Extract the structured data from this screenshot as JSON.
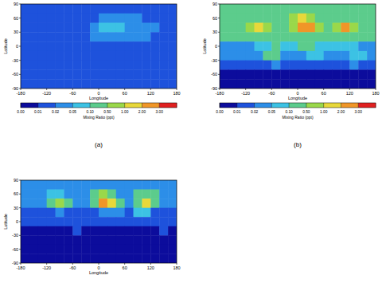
{
  "chart_data": [
    {
      "type": "heatmap",
      "subtitle": "(a)",
      "xlabel": "Longitude",
      "ylabel": "Latitude",
      "xlim": [
        -180,
        180
      ],
      "ylim": [
        -90,
        90
      ],
      "xticks": [
        -180,
        -120,
        -60,
        0,
        60,
        120,
        180
      ],
      "yticks": [
        -90,
        -60,
        -30,
        0,
        30,
        60,
        90
      ],
      "x": [
        -170,
        -150,
        -130,
        -110,
        -90,
        -70,
        -50,
        -30,
        -10,
        10,
        30,
        50,
        70,
        90,
        110,
        130,
        150,
        170
      ],
      "y": [
        80,
        60,
        40,
        20,
        0,
        -20,
        -40,
        -60,
        -80
      ],
      "cells": [
        [
          0.015,
          0.015,
          0.015,
          0.015,
          0.015,
          0.015,
          0.015,
          0.015,
          0.015,
          0.015,
          0.015,
          0.015,
          0.015,
          0.015,
          0.015,
          0.015,
          0.015,
          0.015
        ],
        [
          0.015,
          0.015,
          0.015,
          0.015,
          0.015,
          0.015,
          0.015,
          0.015,
          0.015,
          0.025,
          0.025,
          0.025,
          0.025,
          0.025,
          0.015,
          0.015,
          0.015,
          0.015
        ],
        [
          0.015,
          0.015,
          0.015,
          0.015,
          0.015,
          0.015,
          0.015,
          0.015,
          0.03,
          0.06,
          0.06,
          0.06,
          0.03,
          0.03,
          0.03,
          0.03,
          0.015,
          0.015
        ],
        [
          0.015,
          0.015,
          0.015,
          0.015,
          0.015,
          0.015,
          0.015,
          0.015,
          0.03,
          0.04,
          0.04,
          0.04,
          0.03,
          0.03,
          0.03,
          0.015,
          0.015,
          0.015
        ],
        [
          0.015,
          0.015,
          0.015,
          0.015,
          0.015,
          0.015,
          0.015,
          0.015,
          0.015,
          0.015,
          0.015,
          0.015,
          0.015,
          0.015,
          0.015,
          0.015,
          0.015,
          0.015
        ],
        [
          0.015,
          0.015,
          0.015,
          0.015,
          0.015,
          0.015,
          0.015,
          0.015,
          0.015,
          0.015,
          0.015,
          0.015,
          0.015,
          0.015,
          0.015,
          0.015,
          0.015,
          0.015
        ],
        [
          0.015,
          0.015,
          0.015,
          0.015,
          0.015,
          0.015,
          0.015,
          0.015,
          0.015,
          0.015,
          0.015,
          0.015,
          0.015,
          0.015,
          0.015,
          0.015,
          0.015,
          0.015
        ],
        [
          0.015,
          0.015,
          0.015,
          0.015,
          0.015,
          0.015,
          0.015,
          0.015,
          0.015,
          0.015,
          0.015,
          0.015,
          0.015,
          0.015,
          0.015,
          0.015,
          0.015,
          0.015
        ],
        [
          0.015,
          0.015,
          0.015,
          0.015,
          0.015,
          0.015,
          0.015,
          0.015,
          0.015,
          0.015,
          0.015,
          0.015,
          0.015,
          0.015,
          0.015,
          0.015,
          0.015,
          0.015
        ]
      ]
    },
    {
      "type": "heatmap",
      "subtitle": "(b)",
      "xlabel": "Longitude",
      "ylabel": "Latitude",
      "xlim": [
        -180,
        180
      ],
      "ylim": [
        -90,
        90
      ],
      "xticks": [
        -180,
        -120,
        -60,
        0,
        60,
        120,
        180
      ],
      "yticks": [
        -90,
        -60,
        -30,
        0,
        30,
        60,
        90
      ],
      "x": [
        -170,
        -150,
        -130,
        -110,
        -90,
        -70,
        -50,
        -30,
        -10,
        10,
        30,
        50,
        70,
        90,
        110,
        130,
        150,
        170
      ],
      "y": [
        80,
        60,
        40,
        20,
        0,
        -20,
        -40,
        -60,
        -80
      ],
      "cells": [
        [
          0.2,
          0.2,
          0.2,
          0.2,
          0.2,
          0.2,
          0.2,
          0.2,
          0.2,
          0.2,
          0.2,
          0.2,
          0.2,
          0.2,
          0.2,
          0.2,
          0.2,
          0.2
        ],
        [
          0.2,
          0.2,
          0.2,
          0.4,
          0.4,
          0.2,
          0.2,
          0.2,
          0.6,
          1.5,
          0.6,
          0.2,
          0.4,
          0.4,
          0.4,
          0.4,
          0.2,
          0.2
        ],
        [
          0.2,
          0.2,
          0.3,
          0.8,
          1.5,
          0.8,
          0.2,
          0.2,
          0.8,
          2.5,
          2.5,
          0.8,
          0.3,
          0.9,
          2.5,
          0.9,
          0.2,
          0.2
        ],
        [
          0.12,
          0.12,
          0.15,
          0.15,
          0.2,
          0.15,
          0.15,
          0.15,
          0.2,
          0.3,
          0.3,
          0.3,
          0.3,
          0.3,
          0.2,
          0.15,
          0.12,
          0.12
        ],
        [
          0.04,
          0.04,
          0.04,
          0.04,
          0.06,
          0.06,
          0.1,
          0.06,
          0.06,
          0.12,
          0.12,
          0.06,
          0.06,
          0.06,
          0.06,
          0.06,
          0.04,
          0.04
        ],
        [
          0.03,
          0.03,
          0.03,
          0.03,
          0.03,
          0.12,
          0.12,
          0.03,
          0.03,
          0.03,
          0.08,
          0.08,
          0.03,
          0.03,
          0.03,
          0.08,
          0.08,
          0.03
        ],
        [
          0.015,
          0.015,
          0.015,
          0.015,
          0.015,
          0.015,
          0.03,
          0.015,
          0.015,
          0.015,
          0.015,
          0.015,
          0.015,
          0.015,
          0.015,
          0.02,
          0.015,
          0.015
        ],
        [
          0.008,
          0.008,
          0.008,
          0.008,
          0.008,
          0.008,
          0.008,
          0.008,
          0.008,
          0.008,
          0.008,
          0.008,
          0.008,
          0.008,
          0.008,
          0.008,
          0.008,
          0.008
        ],
        [
          0.005,
          0.005,
          0.005,
          0.005,
          0.005,
          0.005,
          0.005,
          0.005,
          0.005,
          0.005,
          0.005,
          0.005,
          0.005,
          0.005,
          0.005,
          0.005,
          0.005,
          0.005
        ]
      ]
    },
    {
      "type": "heatmap",
      "xlabel": "Longitude",
      "ylabel": "Latitude",
      "xlim": [
        -180,
        180
      ],
      "ylim": [
        -90,
        90
      ],
      "xticks": [
        -180,
        -120,
        -60,
        0,
        60,
        120,
        180
      ],
      "yticks": [
        -90,
        -60,
        -30,
        0,
        30,
        60,
        90
      ],
      "x": [
        -170,
        -150,
        -130,
        -110,
        -90,
        -70,
        -50,
        -30,
        -10,
        10,
        30,
        50,
        70,
        90,
        110,
        130,
        150,
        170
      ],
      "y": [
        80,
        60,
        40,
        20,
        0,
        -20,
        -40,
        -60,
        -80
      ],
      "cells": [
        [
          0.03,
          0.03,
          0.03,
          0.03,
          0.03,
          0.03,
          0.03,
          0.03,
          0.03,
          0.03,
          0.03,
          0.03,
          0.03,
          0.03,
          0.03,
          0.03,
          0.03,
          0.03
        ],
        [
          0.04,
          0.04,
          0.04,
          0.08,
          0.08,
          0.04,
          0.04,
          0.04,
          0.2,
          0.6,
          0.2,
          0.04,
          0.04,
          0.1,
          0.1,
          0.1,
          0.04,
          0.04
        ],
        [
          0.03,
          0.03,
          0.03,
          0.15,
          0.6,
          0.15,
          0.03,
          0.03,
          0.3,
          2.5,
          1.2,
          0.3,
          0.03,
          0.2,
          1.2,
          0.2,
          0.03,
          0.03
        ],
        [
          0.015,
          0.015,
          0.015,
          0.015,
          0.03,
          0.015,
          0.015,
          0.015,
          0.015,
          0.04,
          0.04,
          0.04,
          0.015,
          0.05,
          0.05,
          0.015,
          0.015,
          0.015
        ],
        [
          0.012,
          0.012,
          0.012,
          0.012,
          0.012,
          0.012,
          0.012,
          0.012,
          0.012,
          0.012,
          0.012,
          0.012,
          0.012,
          0.012,
          0.012,
          0.012,
          0.012,
          0.012
        ],
        [
          0.008,
          0.008,
          0.008,
          0.008,
          0.008,
          0.008,
          0.015,
          0.008,
          0.008,
          0.008,
          0.008,
          0.008,
          0.008,
          0.008,
          0.008,
          0.008,
          0.015,
          0.008
        ],
        [
          0.005,
          0.005,
          0.005,
          0.005,
          0.005,
          0.005,
          0.005,
          0.005,
          0.005,
          0.005,
          0.005,
          0.005,
          0.005,
          0.005,
          0.005,
          0.005,
          0.005,
          0.005
        ],
        [
          0.005,
          0.005,
          0.005,
          0.005,
          0.005,
          0.005,
          0.005,
          0.005,
          0.005,
          0.005,
          0.005,
          0.005,
          0.005,
          0.005,
          0.005,
          0.005,
          0.005,
          0.005
        ],
        [
          0.005,
          0.005,
          0.005,
          0.005,
          0.005,
          0.005,
          0.005,
          0.005,
          0.005,
          0.005,
          0.005,
          0.005,
          0.005,
          0.005,
          0.005,
          0.005,
          0.005,
          0.005
        ]
      ]
    }
  ],
  "colorbar": {
    "label": "Mixing Ratio (ppt)",
    "levels": [
      {
        "value": 0,
        "label": "0.00"
      },
      0.01,
      0.02,
      0.05,
      {
        "value": 0.1,
        "label": "0.10"
      },
      {
        "value": 0.5,
        "label": "0.50"
      },
      {
        "value": 1,
        "label": "1.00"
      },
      {
        "value": 2,
        "label": "2.00"
      },
      {
        "value": 3,
        "label": "3.00"
      }
    ],
    "colors": [
      "#0c0c9c",
      "#1e52dc",
      "#2c8ee8",
      "#3cc2e4",
      "#5ccc8c",
      "#9ad84a",
      "#e8d83a",
      "#f09628",
      "#e02020"
    ]
  }
}
